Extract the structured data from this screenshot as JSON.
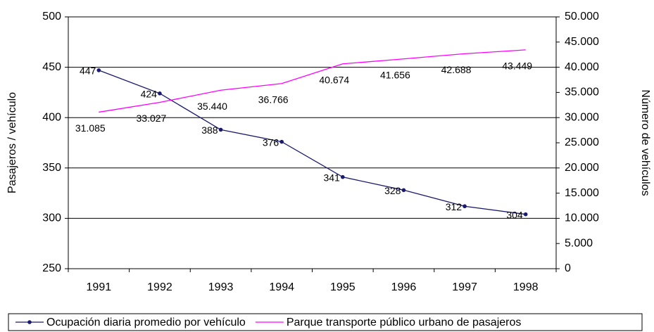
{
  "chart_data": {
    "type": "line",
    "categories": [
      "1991",
      "1992",
      "1993",
      "1994",
      "1995",
      "1996",
      "1997",
      "1998"
    ],
    "y_label": "Pasajeros / vehículo",
    "y2_label": "Número de vehículos",
    "ylim": [
      250,
      500
    ],
    "yticks": [
      250,
      300,
      350,
      400,
      450,
      500
    ],
    "y2lim": [
      0,
      50000
    ],
    "y2ticks": [
      0,
      {
        "value": 5000,
        "label": "5.000"
      },
      {
        "value": 10000,
        "label": "10.000"
      },
      {
        "value": 15000,
        "label": "15.000"
      },
      {
        "value": 20000,
        "label": "20.000"
      },
      {
        "value": 25000,
        "label": "25.000"
      },
      {
        "value": 30000,
        "label": "30.000"
      },
      {
        "value": 35000,
        "label": "35.000"
      },
      {
        "value": 40000,
        "label": "40.000"
      },
      {
        "value": 45000,
        "label": "45.000"
      },
      {
        "value": 50000,
        "label": "50.000"
      }
    ],
    "grid": true,
    "legend": "bottom",
    "series": [
      {
        "name": "Ocupación diaria promedio por vehículo",
        "color": "#1a1a6e",
        "values": [
          447,
          424,
          388,
          376,
          341,
          328,
          312,
          304
        ]
      },
      {
        "name": "Parque transporte público urbano de pasajeros",
        "color": "#ff00ff",
        "axis": "y2",
        "values": [
          31085,
          33027,
          35440,
          36766,
          40674,
          41656,
          42688,
          43449
        ],
        "value_labels": [
          "31.085",
          "33.027",
          "35.440",
          "36.766",
          "40.674",
          "41.656",
          "42.688",
          "43.449"
        ]
      }
    ]
  }
}
